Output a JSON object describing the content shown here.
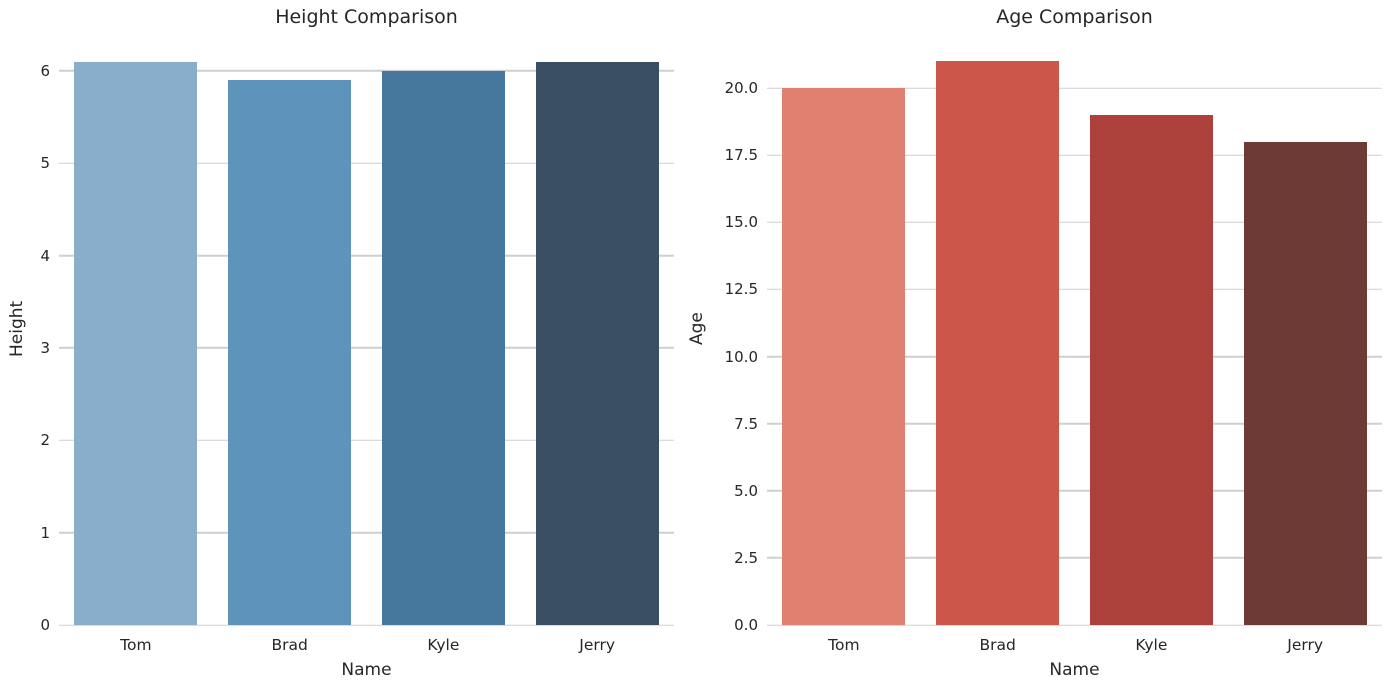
{
  "figure": {
    "background_color": "#ffffff",
    "text_color": "#262626",
    "grid_color": "#cfcfcf"
  },
  "chart_data": [
    {
      "type": "bar",
      "title": "Height Comparison",
      "xlabel": "Name",
      "ylabel": "Height",
      "categories": [
        "Tom",
        "Brad",
        "Kyle",
        "Jerry"
      ],
      "values": [
        6.1,
        5.9,
        6.0,
        6.1
      ],
      "bar_colors": [
        "#89AECB",
        "#5E94BC",
        "#46779D",
        "#3A4E64"
      ],
      "ylim": [
        0,
        6.41
      ],
      "yticks": [
        {
          "value": 0,
          "label": "0"
        },
        {
          "value": 1,
          "label": "1"
        },
        {
          "value": 2,
          "label": "2"
        },
        {
          "value": 3,
          "label": "3"
        },
        {
          "value": 4,
          "label": "4"
        },
        {
          "value": 5,
          "label": "5"
        },
        {
          "value": 6,
          "label": "6"
        }
      ],
      "grid": "horizontal",
      "legend": "none"
    },
    {
      "type": "bar",
      "title": "Age Comparison",
      "xlabel": "Name",
      "ylabel": "Age",
      "categories": [
        "Tom",
        "Brad",
        "Kyle",
        "Jerry"
      ],
      "values": [
        20,
        21,
        19,
        18
      ],
      "bar_colors": [
        "#E08070",
        "#CC5649",
        "#AB413A",
        "#6D3A36"
      ],
      "ylim": [
        0,
        22.05
      ],
      "yticks": [
        {
          "value": 0,
          "label": "0.0"
        },
        {
          "value": 2.5,
          "label": "2.5"
        },
        {
          "value": 5,
          "label": "5.0"
        },
        {
          "value": 7.5,
          "label": "7.5"
        },
        {
          "value": 10,
          "label": "10.0"
        },
        {
          "value": 12.5,
          "label": "12.5"
        },
        {
          "value": 15,
          "label": "15.0"
        },
        {
          "value": 17.5,
          "label": "17.5"
        },
        {
          "value": 20,
          "label": "20.0"
        }
      ],
      "grid": "horizontal",
      "legend": "none"
    }
  ]
}
